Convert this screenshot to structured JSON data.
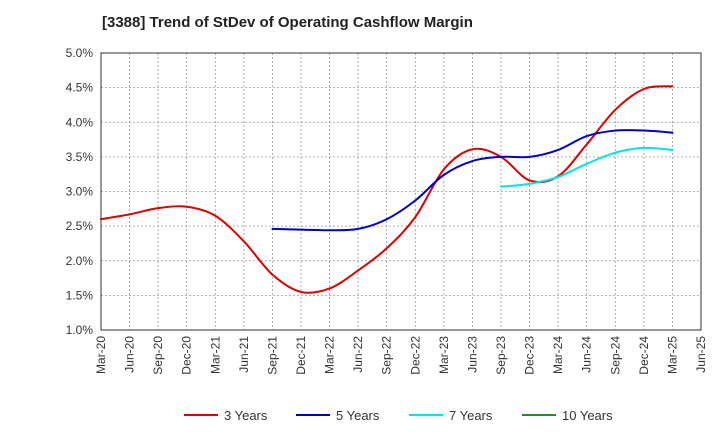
{
  "chart_data": {
    "type": "line",
    "title": "[3388]  Trend of StDev of Operating Cashflow Margin",
    "xlabel": "",
    "ylabel": "",
    "x_ticks": [
      "Mar-20",
      "Jun-20",
      "Sep-20",
      "Dec-20",
      "Mar-21",
      "Jun-21",
      "Sep-21",
      "Dec-21",
      "Mar-22",
      "Jun-22",
      "Sep-22",
      "Dec-22",
      "Mar-23",
      "Jun-23",
      "Sep-23",
      "Dec-23",
      "Mar-24",
      "Jun-24",
      "Sep-24",
      "Dec-24",
      "Mar-25",
      "Jun-25"
    ],
    "y_ticks": [
      "1.0%",
      "1.5%",
      "2.0%",
      "2.5%",
      "3.0%",
      "3.5%",
      "4.0%",
      "4.5%",
      "5.0%"
    ],
    "ylim": [
      1.0,
      5.0
    ],
    "grid": true,
    "legend_position": "bottom",
    "series": [
      {
        "name": "3 Years",
        "color": "#dd0000",
        "points": [
          [
            "Mar-20",
            2.6
          ],
          [
            "Jun-20",
            2.67
          ],
          [
            "Sep-20",
            2.76
          ],
          [
            "Dec-20",
            2.78
          ],
          [
            "Mar-21",
            2.65
          ],
          [
            "Jun-21",
            2.28
          ],
          [
            "Sep-21",
            1.8
          ],
          [
            "Dec-21",
            1.55
          ],
          [
            "Mar-22",
            1.6
          ],
          [
            "Jun-22",
            1.86
          ],
          [
            "Sep-22",
            2.18
          ],
          [
            "Dec-22",
            2.63
          ],
          [
            "Mar-23",
            3.32
          ],
          [
            "Jun-23",
            3.61
          ],
          [
            "Sep-23",
            3.5
          ],
          [
            "Dec-23",
            3.16
          ],
          [
            "Mar-24",
            3.22
          ],
          [
            "Jun-24",
            3.68
          ],
          [
            "Sep-24",
            4.18
          ],
          [
            "Dec-24",
            4.48
          ],
          [
            "Mar-25",
            4.52
          ]
        ]
      },
      {
        "name": "5 Years",
        "color": "#0000cc",
        "points": [
          [
            "Sep-21",
            2.46
          ],
          [
            "Dec-21",
            2.45
          ],
          [
            "Mar-22",
            2.44
          ],
          [
            "Jun-22",
            2.46
          ],
          [
            "Sep-22",
            2.6
          ],
          [
            "Dec-22",
            2.87
          ],
          [
            "Mar-23",
            3.24
          ],
          [
            "Jun-23",
            3.44
          ],
          [
            "Sep-23",
            3.5
          ],
          [
            "Dec-23",
            3.5
          ],
          [
            "Mar-24",
            3.6
          ],
          [
            "Jun-24",
            3.8
          ],
          [
            "Sep-24",
            3.88
          ],
          [
            "Dec-24",
            3.88
          ],
          [
            "Mar-25",
            3.85
          ]
        ]
      },
      {
        "name": "7 Years",
        "color": "#00e5e5",
        "points": [
          [
            "Sep-23",
            3.07
          ],
          [
            "Dec-23",
            3.11
          ],
          [
            "Mar-24",
            3.21
          ],
          [
            "Jun-24",
            3.4
          ],
          [
            "Sep-24",
            3.56
          ],
          [
            "Dec-24",
            3.63
          ],
          [
            "Mar-25",
            3.6
          ]
        ]
      },
      {
        "name": "10 Years",
        "color": "#228b22",
        "points": []
      }
    ]
  }
}
